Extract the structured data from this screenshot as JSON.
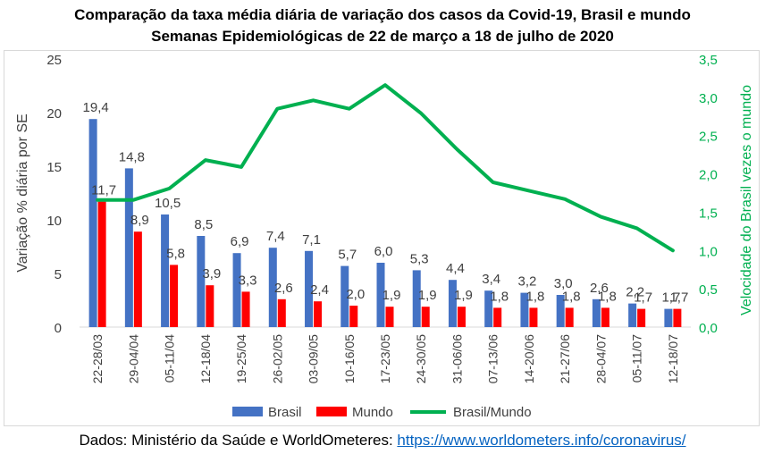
{
  "chart_data": {
    "type": "bar+line",
    "title_lines": [
      "Comparação da taxa média diária de variação dos casos da Covid-19, Brasil e mundo",
      "Semanas Epidemiológicas de 22 de março a 18 de julho de 2020"
    ],
    "categories": [
      "22-28/03",
      "29-04/04",
      "05-11/04",
      "12-18/04",
      "19-25/04",
      "26-02/05",
      "03-09/05",
      "10-16/05",
      "17-23/05",
      "24-30/05",
      "31-06/06",
      "07-13/06",
      "14-20/06",
      "21-27/06",
      "28-04/07",
      "05-11/07",
      "12-18/07"
    ],
    "series": [
      {
        "name": "Brasil",
        "kind": "bar",
        "axis": "left",
        "color": "#4472c4",
        "values": [
          19.4,
          14.8,
          10.5,
          8.5,
          6.9,
          7.4,
          7.1,
          5.7,
          6.0,
          5.3,
          4.4,
          3.4,
          3.2,
          3.0,
          2.6,
          2.2,
          1.7
        ],
        "labels": [
          "19,4",
          "14,8",
          "10,5",
          "8,5",
          "6,9",
          "7,4",
          "7,1",
          "5,7",
          "6,0",
          "5,3",
          "4,4",
          "3,4",
          "3,2",
          "3,0",
          "2,6",
          "2,2",
          "1,7"
        ]
      },
      {
        "name": "Mundo",
        "kind": "bar",
        "axis": "left",
        "color": "#ff0000",
        "values": [
          11.7,
          8.9,
          5.8,
          3.9,
          3.3,
          2.6,
          2.4,
          2.0,
          1.9,
          1.9,
          1.9,
          1.8,
          1.8,
          1.8,
          1.8,
          1.7,
          1.7
        ],
        "labels": [
          "11,7",
          "8,9",
          "5,8",
          "3,9",
          "3,3",
          "2,6",
          "2,4",
          "2,0",
          "1,9",
          "1,9",
          "1,9",
          "1,8",
          "1,8",
          "1,8",
          "1,8",
          "1,7",
          "1,7"
        ]
      },
      {
        "name": "Brasil/Mundo",
        "kind": "line",
        "axis": "right",
        "color": "#00b050",
        "values": [
          1.66,
          1.66,
          1.81,
          2.18,
          2.09,
          2.85,
          2.96,
          2.85,
          3.16,
          2.79,
          2.32,
          1.89,
          1.78,
          1.67,
          1.44,
          1.29,
          1.0
        ]
      }
    ],
    "y_left": {
      "label": "Variação % diária por SE",
      "min": 0,
      "max": 25,
      "ticks": [
        0,
        5,
        10,
        15,
        20,
        25
      ],
      "tick_labels": [
        "0",
        "5",
        "10",
        "15",
        "20",
        "25"
      ],
      "color": "#404040"
    },
    "y_right": {
      "label": "Velocidade do Brasil vezes o mundo",
      "min": 0,
      "max": 3.5,
      "ticks": [
        0,
        0.5,
        1,
        1.5,
        2,
        2.5,
        3,
        3.5
      ],
      "tick_labels": [
        "0,0",
        "0,5",
        "1,0",
        "1,5",
        "2,0",
        "2,5",
        "3,0",
        "3,5"
      ],
      "color": "#00b050"
    },
    "grid": false,
    "legend_position": "bottom"
  },
  "source": {
    "text": "Dados: Ministério da Saúde e WorldOmeteres: ",
    "link_text": "https://www.worldometers.info/coronavirus/"
  }
}
